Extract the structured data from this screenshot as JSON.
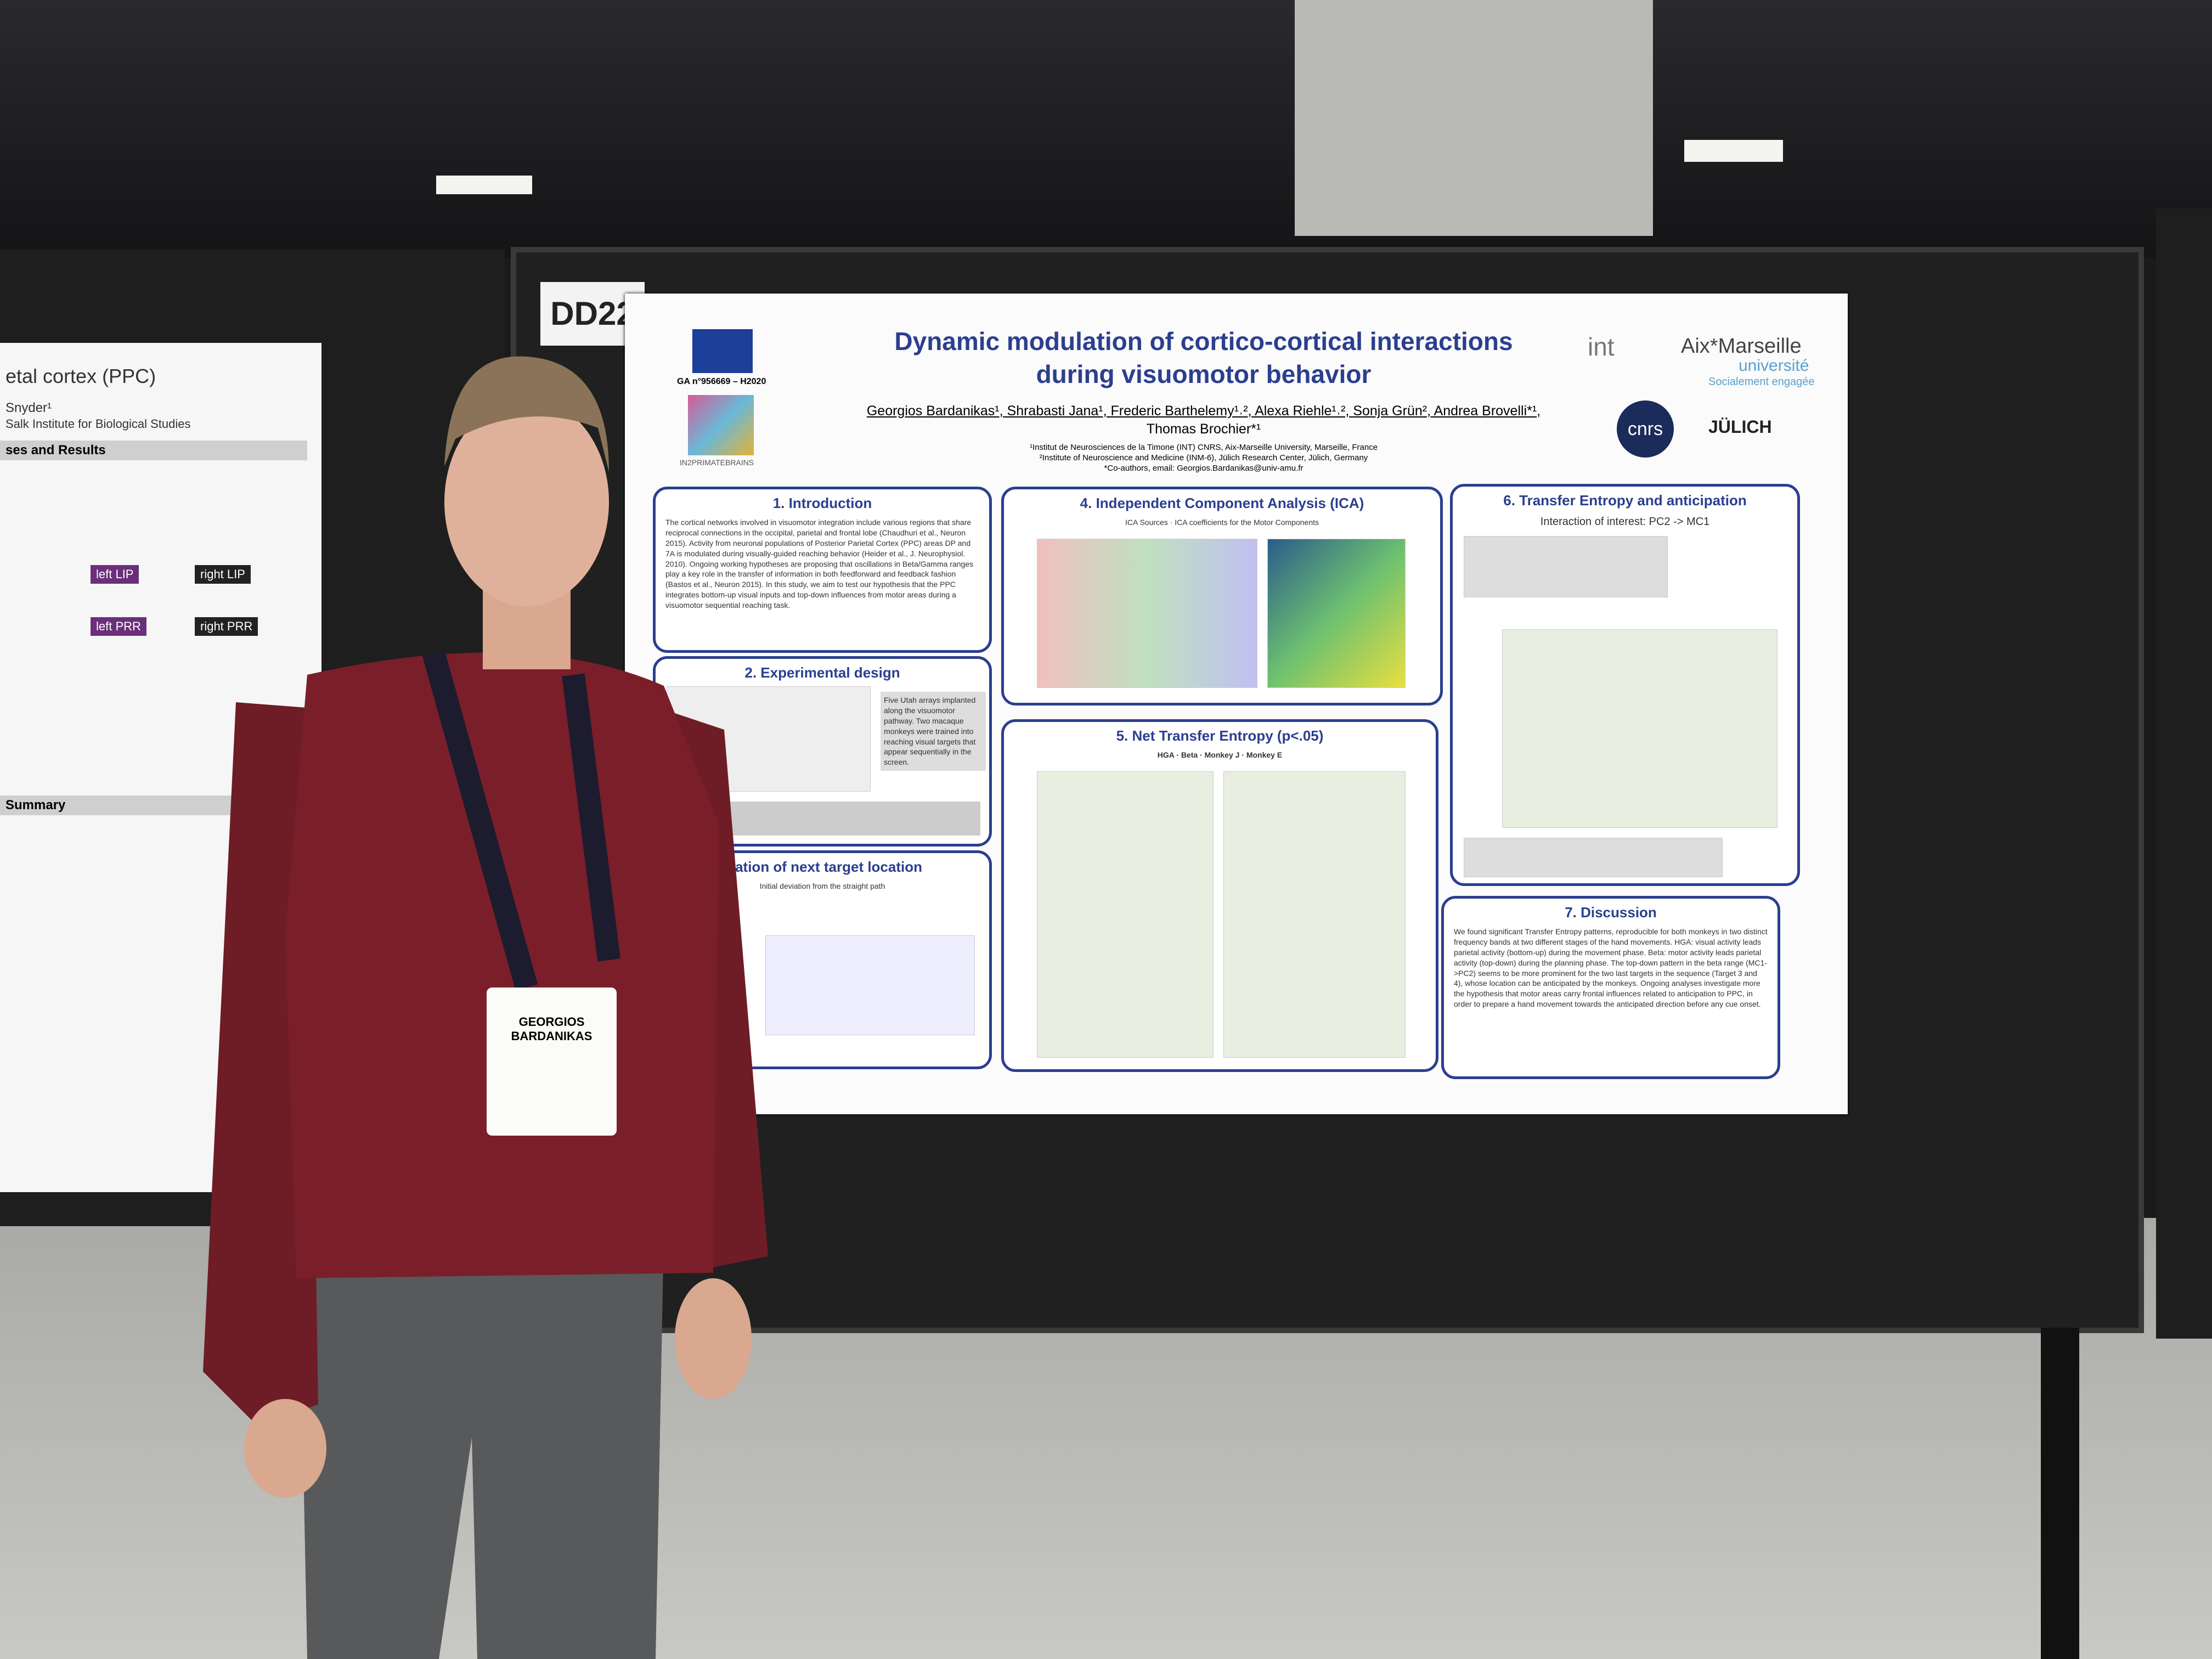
{
  "board": {
    "label": "DD22"
  },
  "poster": {
    "funding": "GA n°956669 – H2020",
    "network": "IN2PRIMATEBRAINS",
    "title": [
      "Dynamic modulation of cortico-cortical interactions",
      "during visuomotor behavior"
    ],
    "authors": [
      "Georgios Bardanikas¹, Shrabasti Jana¹, Frederic Barthelemy¹˒², Alexa Riehle¹˒², Sonja Grün², Andrea Brovelli*¹,",
      "Thomas Brochier*¹"
    ],
    "affiliations": [
      "¹Institut de Neurosciences de la Timone (INT) CNRS, Aix-Marseille University, Marseille, France",
      "²Institute of Neuroscience and Medicine (INM-6), Jülich Research Center, Jülich, Germany",
      "*Co-authors, email: Georgios.Bardanikas@univ-amu.fr"
    ],
    "logos": {
      "int": "int",
      "amu": "Aix*Marseille",
      "amu_sub": "université",
      "amu_tag": "Socialement engagée",
      "cnrs": "cnrs",
      "julich": "JÜLICH"
    },
    "sections": [
      {
        "heading": "1. Introduction",
        "text": "The cortical networks involved in visuomotor integration include various regions that share reciprocal connections in the occipital, parietal and frontal lobe (Chaudhuri et al., Neuron 2015). Activity from neuronal populations of Posterior Parietal Cortex (PPC) areas DP and 7A is modulated during visually-guided reaching behavior (Heider et al., J. Neurophysiol. 2010). Ongoing working hypotheses are proposing that oscillations in Beta/Gamma ranges play a key role in the transfer of information in both feedforward and feedback fashion (Bastos et al., Neuron 2015). In this study, we aim to test our hypothesis that the PPC integrates bottom-up visual inputs and top-down influences from motor areas during a visuomotor sequential reaching task."
      },
      {
        "heading": "2. Experimental design",
        "text": "Five Utah arrays implanted along the visuomotor pathway. Two macaque monkeys were trained into reaching visual targets that appear sequentially in the screen."
      },
      {
        "heading": "ipation of next target location",
        "text": "Initial deviation from the straight path"
      },
      {
        "heading": "4. Independent Component Analysis (ICA)",
        "text": "ICA Sources · ICA coefficients for the Motor Components"
      },
      {
        "heading": "5. Net Transfer Entropy (p<.05)",
        "text": "HGA · Beta · Monkey J · Monkey E"
      },
      {
        "heading": "6. Transfer Entropy and anticipation",
        "text": "Interaction of interest: PC2 -> MC1"
      },
      {
        "heading": "7. Discussion",
        "text": "We found significant Transfer Entropy patterns, reproducible for both monkeys in two distinct frequency bands at two different stages of the hand movements. HGA: visual activity leads parietal activity (bottom-up) during the movement phase. Beta: motor activity leads parietal activity (top-down) during the planning phase. The top-down pattern in the beta range (MC1->PC2) seems to be more prominent for the two last targets in the sequence (Target 3 and 4), whose location can be anticipated by the monkeys. Ongoing analyses investigate more the hypothesis that motor areas carry frontal influences related to anticipation to PPC, in order to prepare a hand movement towards the anticipated direction before any cue onset."
      }
    ]
  },
  "left_poster": {
    "title": "etal cortex (PPC)",
    "author": "Snyder¹",
    "institute": "Salk Institute for Biological Studies",
    "section": "ses and Results",
    "summary": "Summary",
    "nodes": [
      "left LIP",
      "right LIP",
      "left PRR",
      "right PRR"
    ]
  },
  "badge": {
    "first": "GEORGIOS",
    "last": "BARDANIKAS"
  }
}
